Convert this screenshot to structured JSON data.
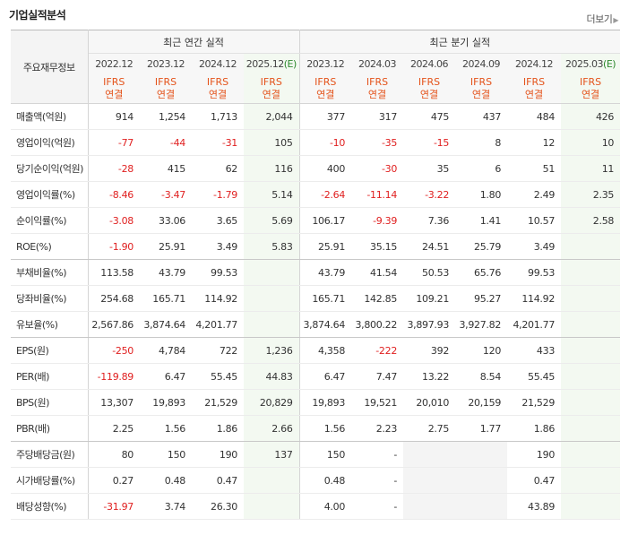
{
  "title": "기업실적분석",
  "more": "더보기",
  "header": {
    "label": "주요재무정보",
    "annual_group": "최근 연간 실적",
    "quarter_group": "최근 분기 실적",
    "annual_periods": [
      {
        "label": "2022.12",
        "est": ""
      },
      {
        "label": "2023.12",
        "est": ""
      },
      {
        "label": "2024.12",
        "est": ""
      },
      {
        "label": "2025.12",
        "est": "(E)"
      }
    ],
    "quarter_periods": [
      {
        "label": "2023.12",
        "est": ""
      },
      {
        "label": "2024.03",
        "est": ""
      },
      {
        "label": "2024.06",
        "est": ""
      },
      {
        "label": "2024.09",
        "est": ""
      },
      {
        "label": "2024.12",
        "est": ""
      },
      {
        "label": "2025.03",
        "est": "(E)"
      }
    ],
    "ifrs_line1": "IFRS",
    "ifrs_line2": "연결"
  },
  "rows": [
    {
      "label": "매출액(억원)",
      "values": [
        "914",
        "1,254",
        "1,713",
        "2,044",
        "377",
        "317",
        "475",
        "437",
        "484",
        "426"
      ]
    },
    {
      "label": "영업이익(억원)",
      "values": [
        "-77",
        "-44",
        "-31",
        "105",
        "-10",
        "-35",
        "-15",
        "8",
        "12",
        "10"
      ]
    },
    {
      "label": "당기순이익(억원)",
      "values": [
        "-28",
        "415",
        "62",
        "116",
        "400",
        "-30",
        "35",
        "6",
        "51",
        "11"
      ]
    },
    {
      "label": "영업이익률(%)",
      "values": [
        "-8.46",
        "-3.47",
        "-1.79",
        "5.14",
        "-2.64",
        "-11.14",
        "-3.22",
        "1.80",
        "2.49",
        "2.35"
      ]
    },
    {
      "label": "순이익률(%)",
      "values": [
        "-3.08",
        "33.06",
        "3.65",
        "5.69",
        "106.17",
        "-9.39",
        "7.36",
        "1.41",
        "10.57",
        "2.58"
      ]
    },
    {
      "label": "ROE(%)",
      "values": [
        "-1.90",
        "25.91",
        "3.49",
        "5.83",
        "25.91",
        "35.15",
        "24.51",
        "25.79",
        "3.49",
        ""
      ]
    },
    {
      "label": "부채비율(%)",
      "values": [
        "113.58",
        "43.79",
        "99.53",
        "",
        "43.79",
        "41.54",
        "50.53",
        "65.76",
        "99.53",
        ""
      ]
    },
    {
      "label": "당좌비율(%)",
      "values": [
        "254.68",
        "165.71",
        "114.92",
        "",
        "165.71",
        "142.85",
        "109.21",
        "95.27",
        "114.92",
        ""
      ]
    },
    {
      "label": "유보율(%)",
      "values": [
        "2,567.86",
        "3,874.64",
        "4,201.77",
        "",
        "3,874.64",
        "3,800.22",
        "3,897.93",
        "3,927.82",
        "4,201.77",
        ""
      ]
    },
    {
      "label": "EPS(원)",
      "values": [
        "-250",
        "4,784",
        "722",
        "1,236",
        "4,358",
        "-222",
        "392",
        "120",
        "433",
        ""
      ]
    },
    {
      "label": "PER(배)",
      "values": [
        "-119.89",
        "6.47",
        "55.45",
        "44.83",
        "6.47",
        "7.47",
        "13.22",
        "8.54",
        "55.45",
        ""
      ]
    },
    {
      "label": "BPS(원)",
      "values": [
        "13,307",
        "19,893",
        "21,529",
        "20,829",
        "19,893",
        "19,521",
        "20,010",
        "20,159",
        "21,529",
        ""
      ]
    },
    {
      "label": "PBR(배)",
      "values": [
        "2.25",
        "1.56",
        "1.86",
        "2.66",
        "1.56",
        "2.23",
        "2.75",
        "1.77",
        "1.86",
        ""
      ]
    },
    {
      "label": "주당배당금(원)",
      "values": [
        "80",
        "150",
        "190",
        "137",
        "150",
        "-",
        "",
        "",
        "190",
        ""
      ]
    },
    {
      "label": "시가배당률(%)",
      "values": [
        "0.27",
        "0.48",
        "0.47",
        "",
        "0.48",
        "-",
        "",
        "",
        "0.47",
        ""
      ]
    },
    {
      "label": "배당성향(%)",
      "values": [
        "-31.97",
        "3.74",
        "26.30",
        "",
        "4.00",
        "-",
        "",
        "",
        "43.89",
        ""
      ]
    }
  ],
  "colors": {
    "negative": "#e02020",
    "ifrs": "#e4531b",
    "estimate_label": "#2f8a2f",
    "estimate_column_bg": "#f3f9f1"
  }
}
